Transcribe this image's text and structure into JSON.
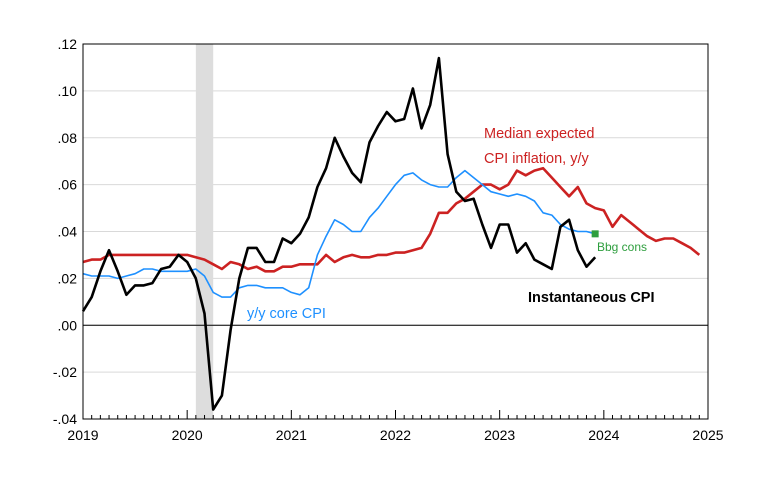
{
  "chart_data": {
    "type": "line",
    "title": "",
    "xlabel": "",
    "ylabel": "",
    "x_start": "2019-01",
    "x_frequency": "monthly",
    "xlim": [
      2019,
      2025
    ],
    "ylim": [
      -0.04,
      0.12
    ],
    "x_ticks": [
      "2019",
      "2020",
      "2021",
      "2022",
      "2023",
      "2024",
      "2025"
    ],
    "y_ticks": [
      ".12",
      ".10",
      ".08",
      ".06",
      ".04",
      ".02",
      ".00",
      "-.02",
      "-.04"
    ],
    "y_tick_values": [
      0.12,
      0.1,
      0.08,
      0.06,
      0.04,
      0.02,
      0.0,
      -0.02,
      -0.04
    ],
    "grid": true,
    "recession_shading": {
      "start": "2020-02",
      "end": "2020-04",
      "color": "#dddddd"
    },
    "series": [
      {
        "name": "Instantaneous CPI",
        "color": "#000000",
        "values": [
          0.006,
          0.012,
          0.023,
          0.032,
          0.023,
          0.013,
          0.017,
          0.017,
          0.018,
          0.024,
          0.025,
          0.03,
          0.027,
          0.02,
          0.005,
          -0.036,
          -0.03,
          -0.002,
          0.02,
          0.033,
          0.033,
          0.027,
          0.027,
          0.037,
          0.035,
          0.039,
          0.046,
          0.059,
          0.067,
          0.08,
          0.072,
          0.065,
          0.061,
          0.078,
          0.085,
          0.091,
          0.087,
          0.088,
          0.101,
          0.084,
          0.094,
          0.114,
          0.073,
          0.057,
          0.053,
          0.054,
          0.043,
          0.033,
          0.043,
          0.043,
          0.031,
          0.035,
          0.028,
          0.026,
          0.024,
          0.042,
          0.045,
          0.032,
          0.025,
          0.029
        ]
      },
      {
        "name": "y/y core CPI",
        "color": "#1e90ff",
        "values": [
          0.022,
          0.021,
          0.021,
          0.021,
          0.02,
          0.021,
          0.022,
          0.024,
          0.024,
          0.023,
          0.023,
          0.023,
          0.023,
          0.024,
          0.021,
          0.014,
          0.012,
          0.012,
          0.016,
          0.017,
          0.017,
          0.016,
          0.016,
          0.016,
          0.014,
          0.013,
          0.016,
          0.03,
          0.038,
          0.045,
          0.043,
          0.04,
          0.04,
          0.046,
          0.05,
          0.055,
          0.06,
          0.064,
          0.065,
          0.062,
          0.06,
          0.059,
          0.059,
          0.063,
          0.066,
          0.063,
          0.06,
          0.057,
          0.056,
          0.055,
          0.056,
          0.055,
          0.053,
          0.048,
          0.047,
          0.043,
          0.041,
          0.04,
          0.04,
          0.039
        ]
      },
      {
        "name": "Median expected CPI inflation, y/y",
        "color": "#cc2222",
        "values": [
          0.027,
          0.028,
          0.028,
          0.03,
          0.03,
          0.03,
          0.03,
          0.03,
          0.03,
          0.03,
          0.03,
          0.03,
          0.03,
          0.029,
          0.028,
          0.026,
          0.024,
          0.027,
          0.026,
          0.024,
          0.025,
          0.023,
          0.023,
          0.025,
          0.025,
          0.026,
          0.026,
          0.026,
          0.03,
          0.027,
          0.029,
          0.03,
          0.029,
          0.029,
          0.03,
          0.03,
          0.031,
          0.031,
          0.032,
          0.033,
          0.039,
          0.048,
          0.048,
          0.052,
          0.054,
          0.057,
          0.06,
          0.06,
          0.058,
          0.06,
          0.066,
          0.064,
          0.066,
          0.067,
          0.063,
          0.059,
          0.055,
          0.059,
          0.052,
          0.05,
          0.049,
          0.042,
          0.047,
          0.044,
          0.041,
          0.038,
          0.036,
          0.037,
          0.037,
          0.035,
          0.033,
          0.03
        ]
      }
    ],
    "points": [
      {
        "name": "Bbg cons",
        "date": "2023-12",
        "value": 0.039,
        "color": "#2e9e3e"
      }
    ],
    "annotations": {
      "median_line1": "Median expected",
      "median_line2": "CPI inflation, y/y",
      "core": "y/y core CPI",
      "instantaneous": "Instantaneous CPI",
      "bbg": "Bbg cons"
    }
  }
}
